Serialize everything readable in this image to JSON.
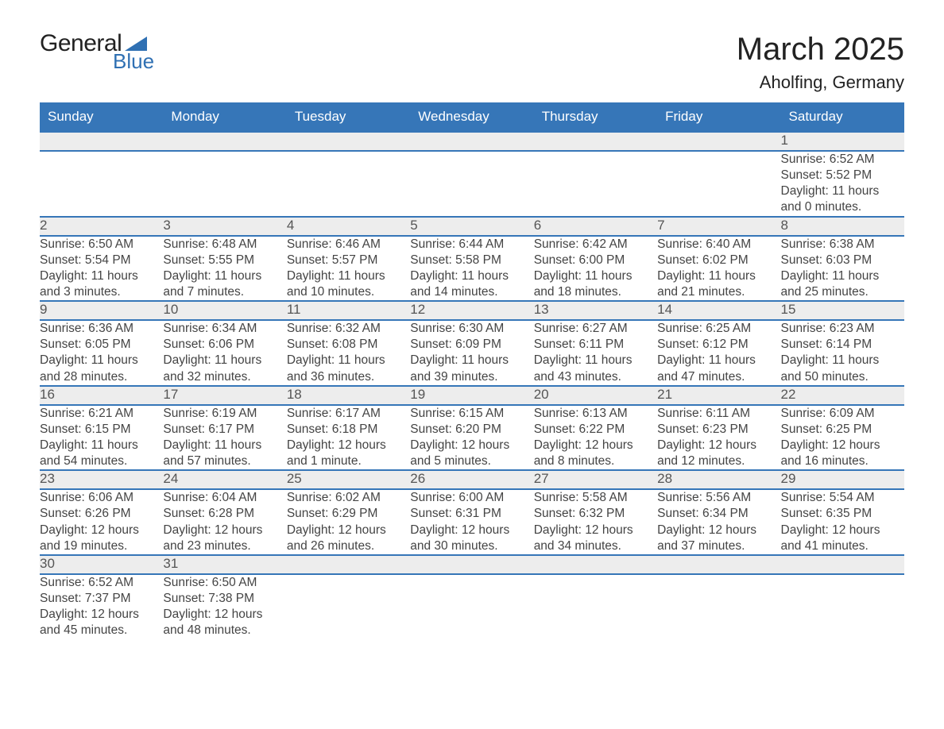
{
  "logo": {
    "text1": "General",
    "text2": "Blue",
    "tri_color": "#2f70b3"
  },
  "header": {
    "month": "March 2025",
    "location": "Aholfing, Germany"
  },
  "colors": {
    "header_bg": "#3676b8",
    "row_border": "#3676b8",
    "daynum_bg": "#ededed"
  },
  "weekdays": [
    "Sunday",
    "Monday",
    "Tuesday",
    "Wednesday",
    "Thursday",
    "Friday",
    "Saturday"
  ],
  "weeks": [
    [
      null,
      null,
      null,
      null,
      null,
      null,
      {
        "n": "1",
        "sunrise": "Sunrise: 6:52 AM",
        "sunset": "Sunset: 5:52 PM",
        "day1": "Daylight: 11 hours",
        "day2": "and 0 minutes."
      }
    ],
    [
      {
        "n": "2",
        "sunrise": "Sunrise: 6:50 AM",
        "sunset": "Sunset: 5:54 PM",
        "day1": "Daylight: 11 hours",
        "day2": "and 3 minutes."
      },
      {
        "n": "3",
        "sunrise": "Sunrise: 6:48 AM",
        "sunset": "Sunset: 5:55 PM",
        "day1": "Daylight: 11 hours",
        "day2": "and 7 minutes."
      },
      {
        "n": "4",
        "sunrise": "Sunrise: 6:46 AM",
        "sunset": "Sunset: 5:57 PM",
        "day1": "Daylight: 11 hours",
        "day2": "and 10 minutes."
      },
      {
        "n": "5",
        "sunrise": "Sunrise: 6:44 AM",
        "sunset": "Sunset: 5:58 PM",
        "day1": "Daylight: 11 hours",
        "day2": "and 14 minutes."
      },
      {
        "n": "6",
        "sunrise": "Sunrise: 6:42 AM",
        "sunset": "Sunset: 6:00 PM",
        "day1": "Daylight: 11 hours",
        "day2": "and 18 minutes."
      },
      {
        "n": "7",
        "sunrise": "Sunrise: 6:40 AM",
        "sunset": "Sunset: 6:02 PM",
        "day1": "Daylight: 11 hours",
        "day2": "and 21 minutes."
      },
      {
        "n": "8",
        "sunrise": "Sunrise: 6:38 AM",
        "sunset": "Sunset: 6:03 PM",
        "day1": "Daylight: 11 hours",
        "day2": "and 25 minutes."
      }
    ],
    [
      {
        "n": "9",
        "sunrise": "Sunrise: 6:36 AM",
        "sunset": "Sunset: 6:05 PM",
        "day1": "Daylight: 11 hours",
        "day2": "and 28 minutes."
      },
      {
        "n": "10",
        "sunrise": "Sunrise: 6:34 AM",
        "sunset": "Sunset: 6:06 PM",
        "day1": "Daylight: 11 hours",
        "day2": "and 32 minutes."
      },
      {
        "n": "11",
        "sunrise": "Sunrise: 6:32 AM",
        "sunset": "Sunset: 6:08 PM",
        "day1": "Daylight: 11 hours",
        "day2": "and 36 minutes."
      },
      {
        "n": "12",
        "sunrise": "Sunrise: 6:30 AM",
        "sunset": "Sunset: 6:09 PM",
        "day1": "Daylight: 11 hours",
        "day2": "and 39 minutes."
      },
      {
        "n": "13",
        "sunrise": "Sunrise: 6:27 AM",
        "sunset": "Sunset: 6:11 PM",
        "day1": "Daylight: 11 hours",
        "day2": "and 43 minutes."
      },
      {
        "n": "14",
        "sunrise": "Sunrise: 6:25 AM",
        "sunset": "Sunset: 6:12 PM",
        "day1": "Daylight: 11 hours",
        "day2": "and 47 minutes."
      },
      {
        "n": "15",
        "sunrise": "Sunrise: 6:23 AM",
        "sunset": "Sunset: 6:14 PM",
        "day1": "Daylight: 11 hours",
        "day2": "and 50 minutes."
      }
    ],
    [
      {
        "n": "16",
        "sunrise": "Sunrise: 6:21 AM",
        "sunset": "Sunset: 6:15 PM",
        "day1": "Daylight: 11 hours",
        "day2": "and 54 minutes."
      },
      {
        "n": "17",
        "sunrise": "Sunrise: 6:19 AM",
        "sunset": "Sunset: 6:17 PM",
        "day1": "Daylight: 11 hours",
        "day2": "and 57 minutes."
      },
      {
        "n": "18",
        "sunrise": "Sunrise: 6:17 AM",
        "sunset": "Sunset: 6:18 PM",
        "day1": "Daylight: 12 hours",
        "day2": "and 1 minute."
      },
      {
        "n": "19",
        "sunrise": "Sunrise: 6:15 AM",
        "sunset": "Sunset: 6:20 PM",
        "day1": "Daylight: 12 hours",
        "day2": "and 5 minutes."
      },
      {
        "n": "20",
        "sunrise": "Sunrise: 6:13 AM",
        "sunset": "Sunset: 6:22 PM",
        "day1": "Daylight: 12 hours",
        "day2": "and 8 minutes."
      },
      {
        "n": "21",
        "sunrise": "Sunrise: 6:11 AM",
        "sunset": "Sunset: 6:23 PM",
        "day1": "Daylight: 12 hours",
        "day2": "and 12 minutes."
      },
      {
        "n": "22",
        "sunrise": "Sunrise: 6:09 AM",
        "sunset": "Sunset: 6:25 PM",
        "day1": "Daylight: 12 hours",
        "day2": "and 16 minutes."
      }
    ],
    [
      {
        "n": "23",
        "sunrise": "Sunrise: 6:06 AM",
        "sunset": "Sunset: 6:26 PM",
        "day1": "Daylight: 12 hours",
        "day2": "and 19 minutes."
      },
      {
        "n": "24",
        "sunrise": "Sunrise: 6:04 AM",
        "sunset": "Sunset: 6:28 PM",
        "day1": "Daylight: 12 hours",
        "day2": "and 23 minutes."
      },
      {
        "n": "25",
        "sunrise": "Sunrise: 6:02 AM",
        "sunset": "Sunset: 6:29 PM",
        "day1": "Daylight: 12 hours",
        "day2": "and 26 minutes."
      },
      {
        "n": "26",
        "sunrise": "Sunrise: 6:00 AM",
        "sunset": "Sunset: 6:31 PM",
        "day1": "Daylight: 12 hours",
        "day2": "and 30 minutes."
      },
      {
        "n": "27",
        "sunrise": "Sunrise: 5:58 AM",
        "sunset": "Sunset: 6:32 PM",
        "day1": "Daylight: 12 hours",
        "day2": "and 34 minutes."
      },
      {
        "n": "28",
        "sunrise": "Sunrise: 5:56 AM",
        "sunset": "Sunset: 6:34 PM",
        "day1": "Daylight: 12 hours",
        "day2": "and 37 minutes."
      },
      {
        "n": "29",
        "sunrise": "Sunrise: 5:54 AM",
        "sunset": "Sunset: 6:35 PM",
        "day1": "Daylight: 12 hours",
        "day2": "and 41 minutes."
      }
    ],
    [
      {
        "n": "30",
        "sunrise": "Sunrise: 6:52 AM",
        "sunset": "Sunset: 7:37 PM",
        "day1": "Daylight: 12 hours",
        "day2": "and 45 minutes."
      },
      {
        "n": "31",
        "sunrise": "Sunrise: 6:50 AM",
        "sunset": "Sunset: 7:38 PM",
        "day1": "Daylight: 12 hours",
        "day2": "and 48 minutes."
      },
      null,
      null,
      null,
      null,
      null
    ]
  ]
}
